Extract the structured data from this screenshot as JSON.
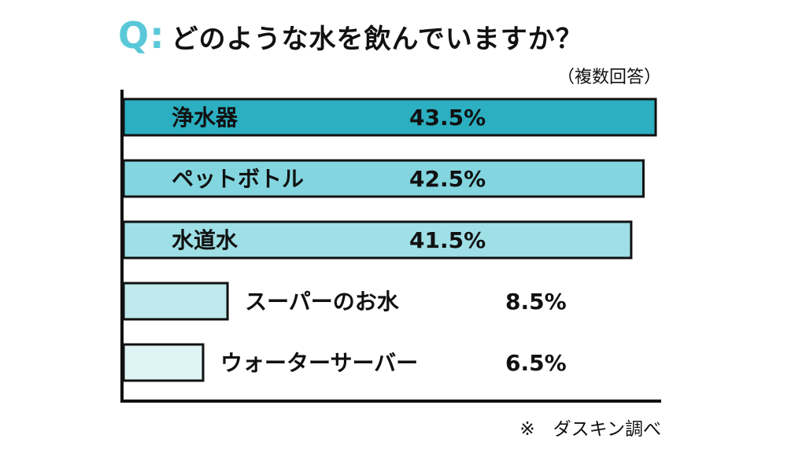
{
  "header": {
    "q_mark": "Q:",
    "question": "どのような水を飲んでいますか？",
    "subtitle": "（複数回答）"
  },
  "footer": {
    "note": "※　ダスキン調べ"
  },
  "chart_data": {
    "type": "bar",
    "orientation": "horizontal",
    "title": "どのような水を飲んでいますか？",
    "subtitle": "（複数回答）",
    "categories": [
      "浄水器",
      "ペットボトル",
      "水道水",
      "スーパーのお水",
      "ウォーターサーバー"
    ],
    "values": [
      43.5,
      42.5,
      41.5,
      8.5,
      6.5
    ],
    "value_labels": [
      "43.5%",
      "42.5%",
      "41.5%",
      "8.5%",
      "6.5%"
    ],
    "colors": [
      "#2bafc1",
      "#83d6df",
      "#9fdfe6",
      "#bfe9ec",
      "#def4f5"
    ],
    "unit": "%",
    "xlim": [
      0,
      43.5
    ],
    "grid": false,
    "legend": "none"
  }
}
